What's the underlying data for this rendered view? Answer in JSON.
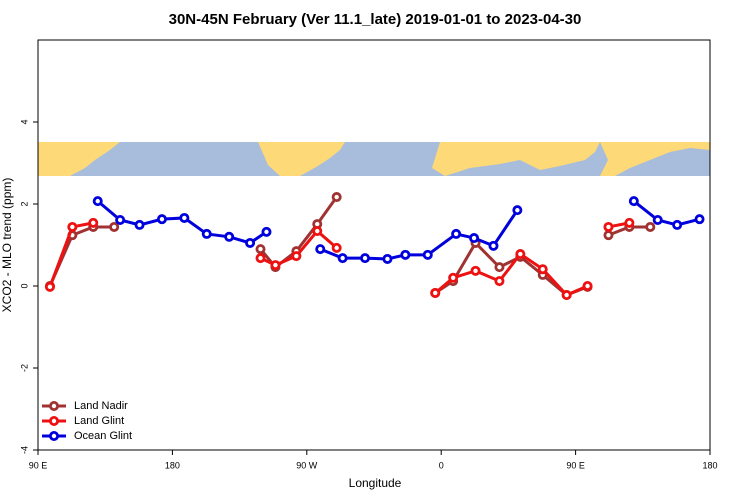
{
  "chart_data": {
    "type": "line",
    "title": "30N-45N February (Ver 11.1_late)   2019-01-01 to 2023-04-30",
    "x_label": "Longitude",
    "y_label": "XCO2 - MLO trend (ppm)",
    "xlim": [
      90,
      540
    ],
    "ylim": [
      -4,
      6
    ],
    "xticks": [
      {
        "value": 90,
        "label": "90 E"
      },
      180,
      {
        "value": 270,
        "label": "90 W"
      },
      {
        "value": 360,
        "label": "0"
      },
      {
        "value": 450,
        "label": "90 E"
      },
      {
        "value": 540,
        "label": "180"
      }
    ],
    "yticks": [
      -4,
      -2,
      0,
      2,
      4
    ],
    "legend": "bottomleft",
    "series": [
      {
        "name": "Land Nadir",
        "color": "#a03232",
        "x": [
          98,
          113,
          127,
          141,
          null,
          239,
          249,
          263,
          277,
          290,
          null,
          356,
          368,
          383,
          399,
          413,
          428,
          444,
          458,
          null,
          472,
          486,
          500
        ],
        "values": [
          0.0,
          1.24,
          1.44,
          1.44,
          null,
          0.9,
          0.46,
          0.85,
          1.51,
          2.17,
          null,
          -0.17,
          0.12,
          1.05,
          0.46,
          0.71,
          0.27,
          -0.22,
          -0.02,
          null,
          1.24,
          1.44,
          1.44
        ]
      },
      {
        "name": "Land Glint",
        "color": "#ee1111",
        "x": [
          98,
          113,
          127,
          null,
          239,
          249,
          263,
          277,
          290,
          null,
          356,
          368,
          383,
          399,
          413,
          428,
          444,
          458,
          null,
          472,
          486
        ],
        "values": [
          -0.02,
          1.44,
          1.54,
          null,
          0.68,
          0.51,
          0.73,
          1.34,
          0.93,
          null,
          -0.17,
          0.2,
          0.37,
          0.12,
          0.78,
          0.41,
          -0.22,
          0.0,
          null,
          1.44,
          1.54
        ]
      },
      {
        "name": "Ocean Glint",
        "color": "#0000dd",
        "x": [
          130,
          145,
          158,
          173,
          188,
          203,
          218,
          232,
          243,
          null,
          279,
          294,
          309,
          324,
          336,
          351,
          370,
          382,
          395,
          411,
          null,
          489,
          505,
          518,
          533
        ],
        "values": [
          2.07,
          1.61,
          1.49,
          1.63,
          1.66,
          1.27,
          1.2,
          1.05,
          1.32,
          null,
          0.9,
          0.68,
          0.68,
          0.66,
          0.76,
          0.76,
          1.27,
          1.17,
          0.98,
          1.85,
          null,
          2.07,
          1.61,
          1.49,
          1.63
        ]
      }
    ]
  }
}
